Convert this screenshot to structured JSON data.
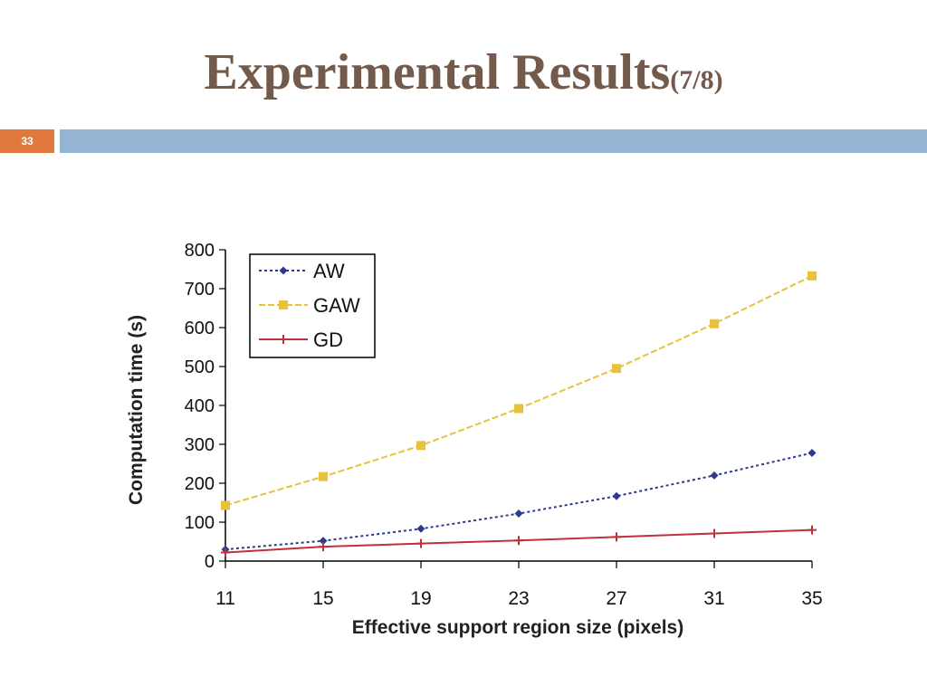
{
  "slide": {
    "title_main": "Experimental Results",
    "title_sub": "(7/8)",
    "page_number": "33",
    "accent_color": "#e07a3c",
    "bar_color": "#93b4d3",
    "title_color": "#735a4b"
  },
  "chart_data": {
    "type": "line",
    "title": "",
    "xlabel": "Effective support region size (pixels)",
    "ylabel": "Computation time (s)",
    "x": [
      11,
      15,
      19,
      23,
      27,
      31,
      35
    ],
    "xlim": [
      11,
      35
    ],
    "ylim": [
      0,
      800
    ],
    "yticks": [
      0,
      100,
      200,
      300,
      400,
      500,
      600,
      700,
      800
    ],
    "grid": false,
    "legend_position": "top-left",
    "series": [
      {
        "name": "AW",
        "color": "#2e3a8c",
        "marker": "diamond",
        "dash": "dotted",
        "values": [
          30,
          52,
          83,
          122,
          167,
          220,
          278
        ]
      },
      {
        "name": "GAW",
        "color": "#e8c23a",
        "marker": "square",
        "dash": "dashed",
        "values": [
          143,
          217,
          297,
          392,
          495,
          610,
          733
        ]
      },
      {
        "name": "GD",
        "color": "#c0303a",
        "marker": "plus",
        "dash": "solid",
        "values": [
          22,
          37,
          45,
          53,
          62,
          71,
          80
        ]
      }
    ]
  }
}
